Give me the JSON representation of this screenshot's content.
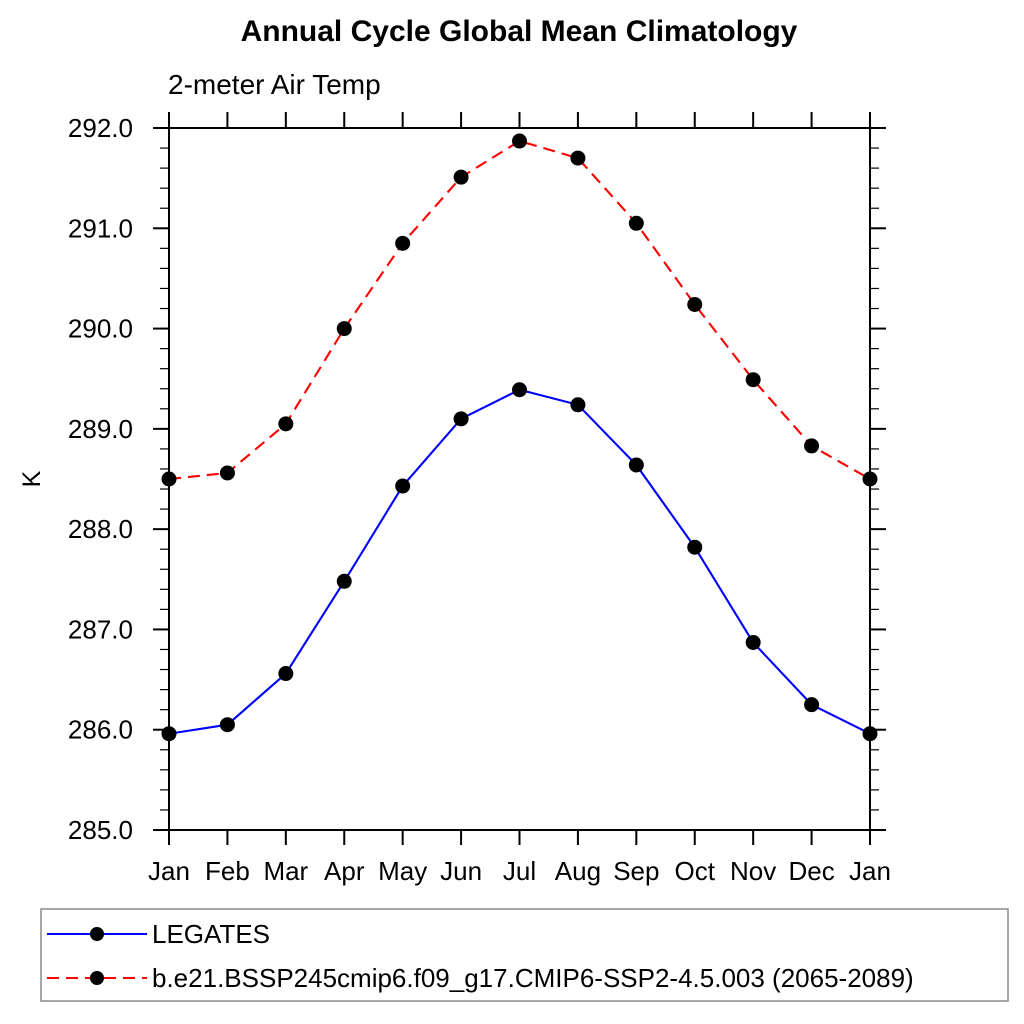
{
  "chart_data": {
    "type": "line",
    "title": "Annual Cycle Global Mean Climatology",
    "subtitle": "2-meter Air Temp",
    "xlabel": "",
    "ylabel": "K",
    "categories": [
      "Jan",
      "Feb",
      "Mar",
      "Apr",
      "May",
      "Jun",
      "Jul",
      "Aug",
      "Sep",
      "Oct",
      "Nov",
      "Dec",
      "Jan"
    ],
    "ylim": [
      285.0,
      292.0
    ],
    "y_major_step": 1.0,
    "y_minor_step": 0.2,
    "y_tick_labels": [
      "285.0",
      "286.0",
      "287.0",
      "288.0",
      "289.0",
      "290.0",
      "291.0",
      "292.0"
    ],
    "grid": false,
    "legend_position": "bottom-box",
    "axis_color": "#000000",
    "marker": "filled-circle",
    "marker_color": "#000000",
    "series": [
      {
        "name": "LEGATES",
        "color": "#0000ff",
        "style": "solid",
        "values": [
          285.96,
          286.05,
          286.56,
          287.48,
          288.43,
          289.1,
          289.39,
          289.24,
          288.64,
          287.82,
          286.87,
          286.25,
          285.96
        ]
      },
      {
        "name": "b.e21.BSSP245cmip6.f09_g17.CMIP6-SSP2-4.5.003 (2065-2089)",
        "color": "#ff0000",
        "style": "dashed",
        "values": [
          288.5,
          288.56,
          289.05,
          290.0,
          290.85,
          291.51,
          291.87,
          291.7,
          291.05,
          290.24,
          289.49,
          288.83,
          288.5
        ]
      }
    ]
  }
}
